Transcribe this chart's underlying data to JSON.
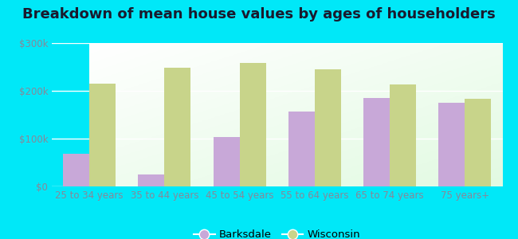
{
  "title": "Breakdown of mean house values by ages of householders",
  "categories": [
    "25 to 34 years",
    "35 to 44 years",
    "45 to 54 years",
    "55 to 64 years",
    "65 to 74 years",
    "75 years+"
  ],
  "barksdale": [
    68000,
    25000,
    103000,
    157000,
    185000,
    175000
  ],
  "wisconsin": [
    215000,
    248000,
    258000,
    245000,
    213000,
    183000
  ],
  "barksdale_color": "#c8a8d8",
  "wisconsin_color": "#c8d48a",
  "background_outer": "#00e8f8",
  "ylim": [
    0,
    300000
  ],
  "yticks": [
    0,
    100000,
    200000,
    300000
  ],
  "ytick_labels": [
    "$0",
    "$100k",
    "$200k",
    "$300k"
  ],
  "legend_labels": [
    "Barksdale",
    "Wisconsin"
  ],
  "bar_width": 0.35,
  "title_fontsize": 13,
  "tick_fontsize": 8.5,
  "legend_fontsize": 9.5,
  "title_color": "#1a1a2e",
  "tick_color": "#888899"
}
